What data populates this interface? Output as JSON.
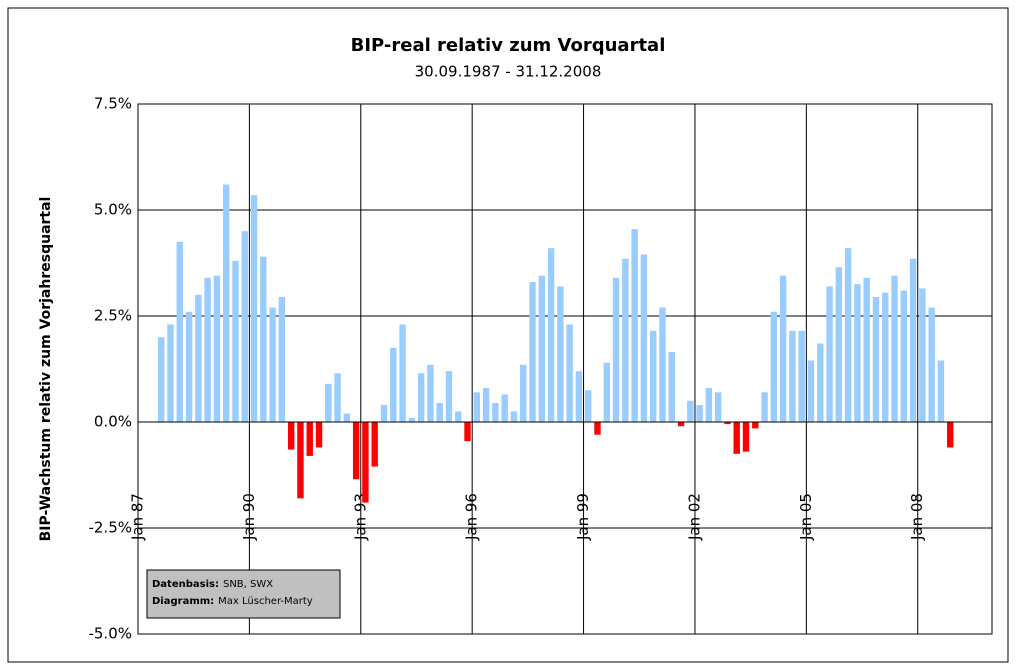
{
  "chart_data": {
    "type": "bar",
    "title": "BIP-real relativ zum Vorquartal",
    "subtitle": "30.09.1987 - 31.12.2008",
    "y_label": "BIP-Wachstum relativ zum Vorjahresquartal",
    "notes": [
      {
        "label": "Datenbasis:",
        "text": "SNB, SWX"
      },
      {
        "label": "Diagramm:",
        "text": "Max Lüscher-Marty"
      }
    ],
    "color": "#99ccff",
    "negative_color": "#ff0000",
    "grid": true,
    "xlim": [
      1987,
      2010
    ],
    "xticks": [
      {
        "value": 1987,
        "label": "Jan 87"
      },
      {
        "value": 1990,
        "label": "Jan 90"
      },
      {
        "value": 1993,
        "label": "Jan 93"
      },
      {
        "value": 1996,
        "label": "Jan 96"
      },
      {
        "value": 1999,
        "label": "Jan 99"
      },
      {
        "value": 2002,
        "label": "Jan 02"
      },
      {
        "value": 2005,
        "label": "Jan 05"
      },
      {
        "value": 2008,
        "label": "Jan 08"
      }
    ],
    "ylim": [
      -5,
      7.5
    ],
    "yticks": [
      {
        "value": -5,
        "label": "-5.0%"
      },
      {
        "value": -2.5,
        "label": "-2.5%"
      },
      {
        "value": 0,
        "label": "0.0%"
      },
      {
        "value": 2.5,
        "label": "2.5%"
      },
      {
        "value": 5,
        "label": "5.0%"
      },
      {
        "value": 7.5,
        "label": "7.5%"
      }
    ],
    "x": [
      1987.625,
      1987.875,
      1988.125,
      1988.375,
      1988.625,
      1988.875,
      1989.125,
      1989.375,
      1989.625,
      1989.875,
      1990.125,
      1990.375,
      1990.625,
      1990.875,
      1991.125,
      1991.375,
      1991.625,
      1991.875,
      1992.125,
      1992.375,
      1992.625,
      1992.875,
      1993.125,
      1993.375,
      1993.625,
      1993.875,
      1994.125,
      1994.375,
      1994.625,
      1994.875,
      1995.125,
      1995.375,
      1995.625,
      1995.875,
      1996.125,
      1996.375,
      1996.625,
      1996.875,
      1997.125,
      1997.375,
      1997.625,
      1997.875,
      1998.125,
      1998.375,
      1998.625,
      1998.875,
      1999.125,
      1999.375,
      1999.625,
      1999.875,
      2000.125,
      2000.375,
      2000.625,
      2000.875,
      2001.125,
      2001.375,
      2001.625,
      2001.875,
      2002.125,
      2002.375,
      2002.625,
      2002.875,
      2003.125,
      2003.375,
      2003.625,
      2003.875,
      2004.125,
      2004.375,
      2004.625,
      2004.875,
      2005.125,
      2005.375,
      2005.625,
      2005.875,
      2006.125,
      2006.375,
      2006.625,
      2006.875,
      2007.125,
      2007.375,
      2007.625,
      2007.875,
      2008.125,
      2008.375,
      2008.625,
      2008.875
    ],
    "values": [
      2.0,
      2.3,
      4.25,
      2.6,
      3.0,
      3.4,
      3.45,
      5.6,
      3.8,
      4.5,
      5.35,
      3.9,
      2.7,
      2.95,
      -0.65,
      -1.8,
      -0.8,
      -0.6,
      0.9,
      1.15,
      0.2,
      -1.35,
      -1.9,
      -1.05,
      0.4,
      1.75,
      2.3,
      0.1,
      1.15,
      1.35,
      0.45,
      1.2,
      0.25,
      -0.45,
      0.7,
      0.8,
      0.45,
      0.65,
      0.25,
      1.35,
      3.3,
      3.45,
      4.1,
      3.2,
      2.3,
      1.2,
      0.75,
      -0.3,
      1.4,
      3.4,
      3.85,
      4.55,
      3.95,
      2.15,
      2.7,
      1.65,
      -0.1,
      0.5,
      0.4,
      0.8,
      0.7,
      -0.05,
      -0.75,
      -0.7,
      -0.15,
      0.7,
      2.6,
      3.45,
      2.15,
      2.15,
      1.45,
      1.85,
      3.2,
      3.65,
      4.1,
      3.25,
      3.4,
      2.95,
      3.05,
      3.45,
      3.1,
      3.85,
      3.15,
      2.7,
      1.45,
      -0.6
    ]
  }
}
